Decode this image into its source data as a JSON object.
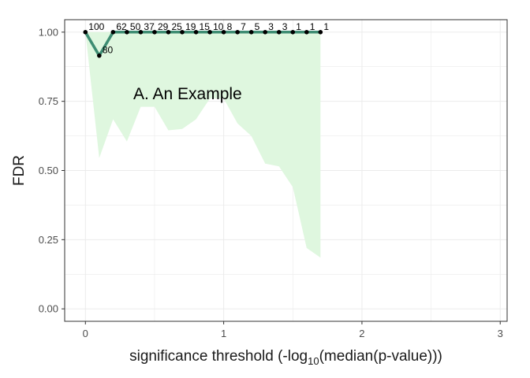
{
  "chart_data": {
    "type": "line",
    "title": "",
    "annotation": "A. An Example",
    "xlabel_main": "significance threshold (-log",
    "xlabel_sub": "10",
    "xlabel_tail": "(median(p-value)))",
    "ylabel": "FDR",
    "xlim": [
      -0.15,
      3.05
    ],
    "ylim": [
      -0.045,
      1.045
    ],
    "x_ticks": [
      0,
      1,
      2,
      3
    ],
    "x_tick_labels": [
      "0",
      "1",
      "2",
      "3"
    ],
    "y_ticks": [
      0,
      0.25,
      0.5,
      0.75,
      1.0
    ],
    "y_tick_labels": [
      "0.00",
      "0.25",
      "0.50",
      "0.75",
      "1.00"
    ],
    "grid": true,
    "x": [
      0,
      0.1,
      0.2,
      0.3,
      0.4,
      0.5,
      0.6,
      0.7,
      0.8,
      0.9,
      1.0,
      1.1,
      1.2,
      1.3,
      1.4,
      1.5,
      1.6,
      1.7
    ],
    "fdr": [
      1.0,
      0.915,
      1.0,
      1.0,
      1.0,
      1.0,
      1.0,
      1.0,
      1.0,
      1.0,
      1.0,
      1.0,
      1.0,
      1.0,
      1.0,
      1.0,
      1.0,
      1.0
    ],
    "band_lower": [
      1.0,
      0.545,
      0.685,
      0.605,
      0.73,
      0.73,
      0.645,
      0.65,
      0.685,
      0.76,
      0.76,
      0.67,
      0.625,
      0.525,
      0.515,
      0.44,
      0.22,
      0.185
    ],
    "band_upper": [
      1.0,
      1.0,
      1.0,
      1.0,
      1.0,
      1.0,
      1.0,
      1.0,
      1.0,
      1.0,
      1.0,
      1.0,
      1.0,
      1.0,
      1.0,
      1.0,
      1.0,
      1.0
    ],
    "point_labels": [
      "100",
      "80",
      "62",
      "50",
      "37",
      "29",
      "25",
      "19",
      "15",
      "10",
      "8",
      "7",
      "5",
      "3",
      "3",
      "1",
      "1",
      "1"
    ],
    "colors": {
      "line": "#3e8d73",
      "band": "#dff7df",
      "point": "#000000",
      "grid": "#ebebeb",
      "panel_border": "#333333"
    }
  }
}
